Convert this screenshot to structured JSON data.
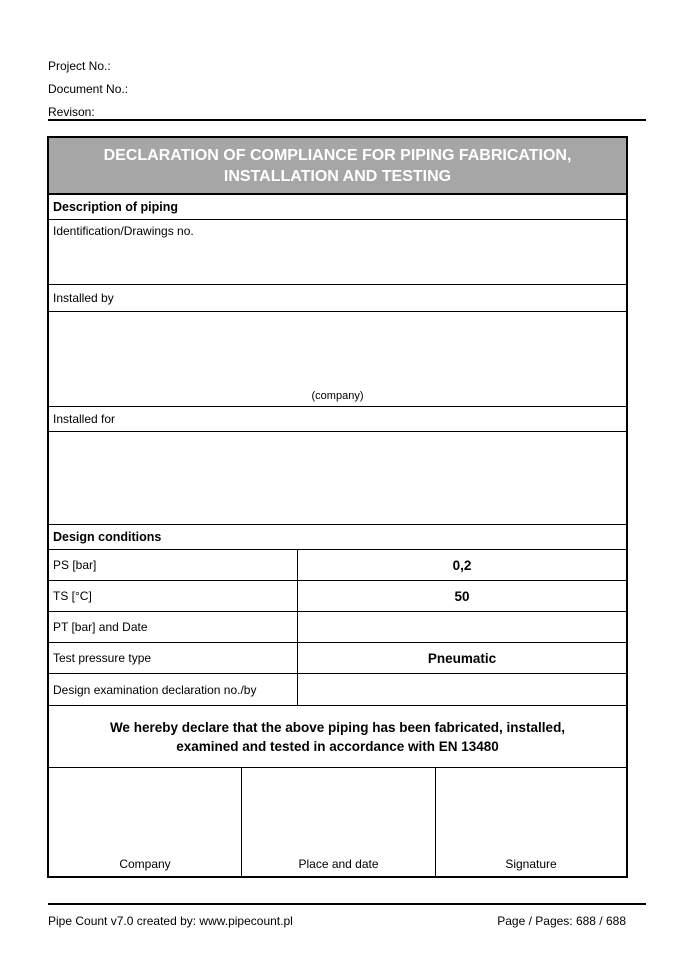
{
  "meta": {
    "project_label": "Project No.:",
    "document_label": "Document No.:",
    "revision_label": "Revison:"
  },
  "banner": {
    "title_line1": "DECLARATION OF COMPLIANCE FOR PIPING FABRICATION,",
    "title_line2": "INSTALLATION AND TESTING"
  },
  "description_section": {
    "header": "Description of piping",
    "identification_label": "Identification/Drawings no.",
    "identification_value": "",
    "installed_by_label": "Installed by",
    "installed_by_value": "",
    "company_hint": "(company)",
    "installed_for_label": "Installed for",
    "installed_for_value": ""
  },
  "design_section": {
    "header": "Design conditions",
    "rows": [
      {
        "label": "PS [bar]",
        "value": "0,2"
      },
      {
        "label": "TS [°C]",
        "value": "50"
      },
      {
        "label": "PT [bar] and Date",
        "value": ""
      },
      {
        "label": "Test pressure type",
        "value": "Pneumatic"
      },
      {
        "label": "Design examination declaration no./by",
        "value": ""
      }
    ]
  },
  "declaration": {
    "line1": "We hereby declare that the above piping has been fabricated, installed,",
    "line2": "examined and tested in accordance with EN 13480"
  },
  "signature_columns": [
    "Company",
    "Place and date",
    "Signature"
  ],
  "footer": {
    "left": "Pipe Count v7.0 created by: www.pipecount.pl",
    "right": "Page / Pages: 688 / 688"
  },
  "colors": {
    "banner_bg": "#a6a6a6",
    "banner_text": "#ffffff",
    "border": "#000000"
  }
}
